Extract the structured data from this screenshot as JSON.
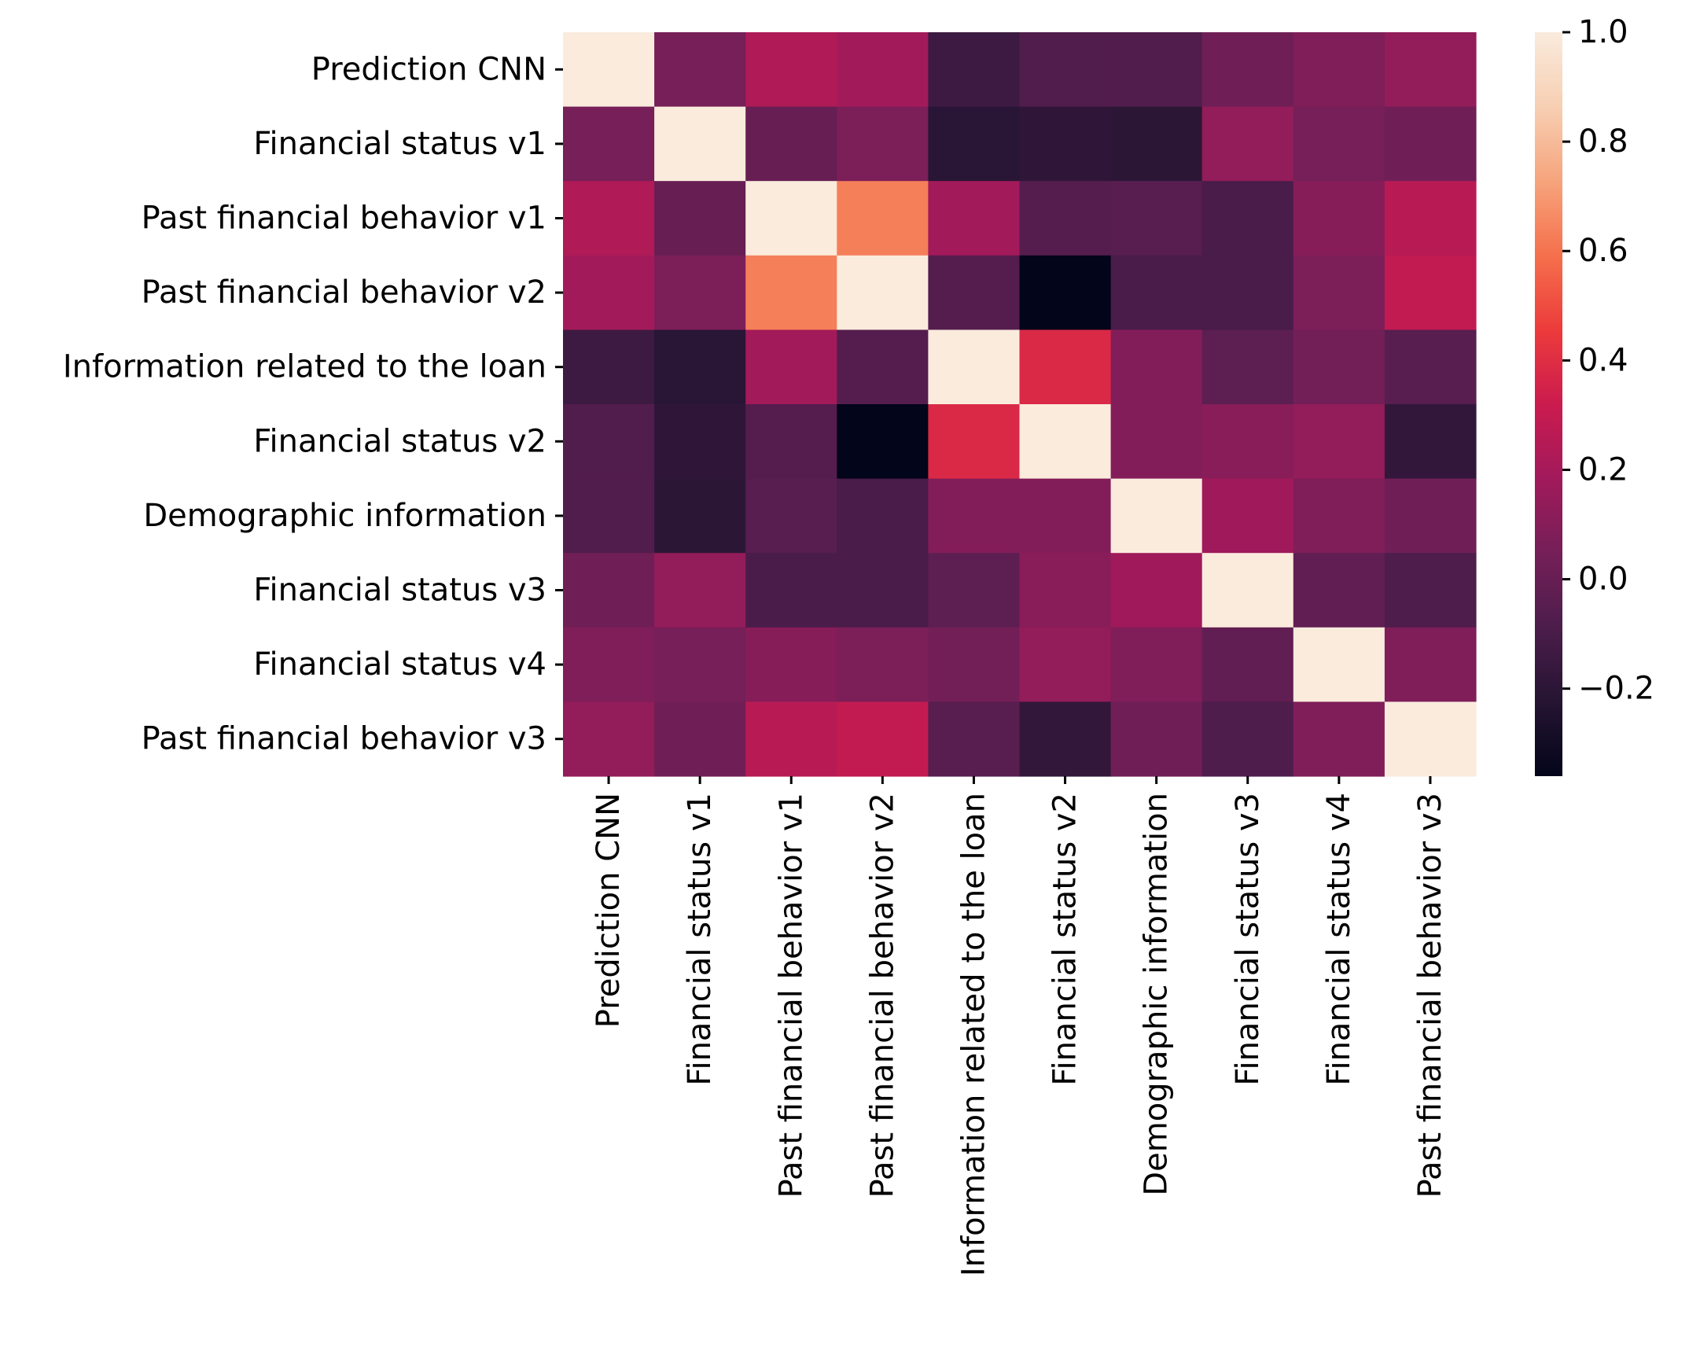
{
  "chart_data": {
    "type": "heatmap",
    "title": "",
    "xlabel": "",
    "ylabel": "",
    "row_labels": [
      "Prediction CNN",
      "Financial status v1",
      "Past financial behavior v1",
      "Past financial behavior v2",
      "Information related to the loan",
      "Financial status v2",
      "Demographic information",
      "Financial status v3",
      "Financial status v4",
      "Past financial behavior v3"
    ],
    "col_labels": [
      "Prediction CNN",
      "Financial status v1",
      "Past financial behavior v1",
      "Past financial behavior v2",
      "Information related to the loan",
      "Financial status v2",
      "Demographic information",
      "Financial status v3",
      "Financial status v4",
      "Past financial behavior v3"
    ],
    "values": [
      [
        1.0,
        0.05,
        0.23,
        0.19,
        -0.14,
        -0.07,
        -0.07,
        0.03,
        0.08,
        0.14
      ],
      [
        0.05,
        1.0,
        0.0,
        0.07,
        -0.21,
        -0.19,
        -0.2,
        0.14,
        0.05,
        0.03
      ],
      [
        0.23,
        0.0,
        1.0,
        0.63,
        0.19,
        -0.06,
        -0.05,
        -0.1,
        0.1,
        0.26
      ],
      [
        0.19,
        0.07,
        0.63,
        1.0,
        -0.06,
        -0.36,
        -0.1,
        -0.1,
        0.07,
        0.29
      ],
      [
        -0.14,
        -0.21,
        0.19,
        -0.06,
        1.0,
        0.38,
        0.09,
        -0.03,
        0.04,
        -0.05
      ],
      [
        -0.07,
        -0.19,
        -0.06,
        -0.36,
        0.38,
        1.0,
        0.09,
        0.11,
        0.14,
        -0.18
      ],
      [
        -0.07,
        -0.2,
        -0.05,
        -0.1,
        0.09,
        0.09,
        1.0,
        0.18,
        0.08,
        0.03
      ],
      [
        0.03,
        0.14,
        -0.1,
        -0.1,
        -0.03,
        0.11,
        0.18,
        1.0,
        -0.02,
        -0.08
      ],
      [
        0.08,
        0.05,
        0.1,
        0.07,
        0.04,
        0.14,
        0.08,
        -0.02,
        1.0,
        0.08
      ],
      [
        0.14,
        0.03,
        0.26,
        0.29,
        -0.05,
        -0.18,
        0.03,
        -0.08,
        0.08,
        1.0
      ]
    ],
    "colorbar": {
      "min": -0.36,
      "max": 1.0,
      "ticks": [
        1.0,
        0.8,
        0.6,
        0.4,
        0.2,
        0.0,
        -0.2
      ],
      "tick_labels": [
        "1.0",
        "0.8",
        "0.6",
        "0.4",
        "0.2",
        "0.0",
        "−0.2"
      ]
    },
    "colormap": {
      "name": "rocket",
      "stops": [
        {
          "v": 0.0,
          "color": "#03051a"
        },
        {
          "v": 0.1,
          "color": "#251432"
        },
        {
          "v": 0.2,
          "color": "#4c1d4b"
        },
        {
          "v": 0.3,
          "color": "#751f58"
        },
        {
          "v": 0.4,
          "color": "#a11a5b"
        },
        {
          "v": 0.5,
          "color": "#cb1b4f"
        },
        {
          "v": 0.6,
          "color": "#ec3b3b"
        },
        {
          "v": 0.7,
          "color": "#f5704c"
        },
        {
          "v": 0.8,
          "color": "#f6a47c"
        },
        {
          "v": 0.9,
          "color": "#f7cfb3"
        },
        {
          "v": 1.0,
          "color": "#faebdd"
        }
      ]
    }
  }
}
